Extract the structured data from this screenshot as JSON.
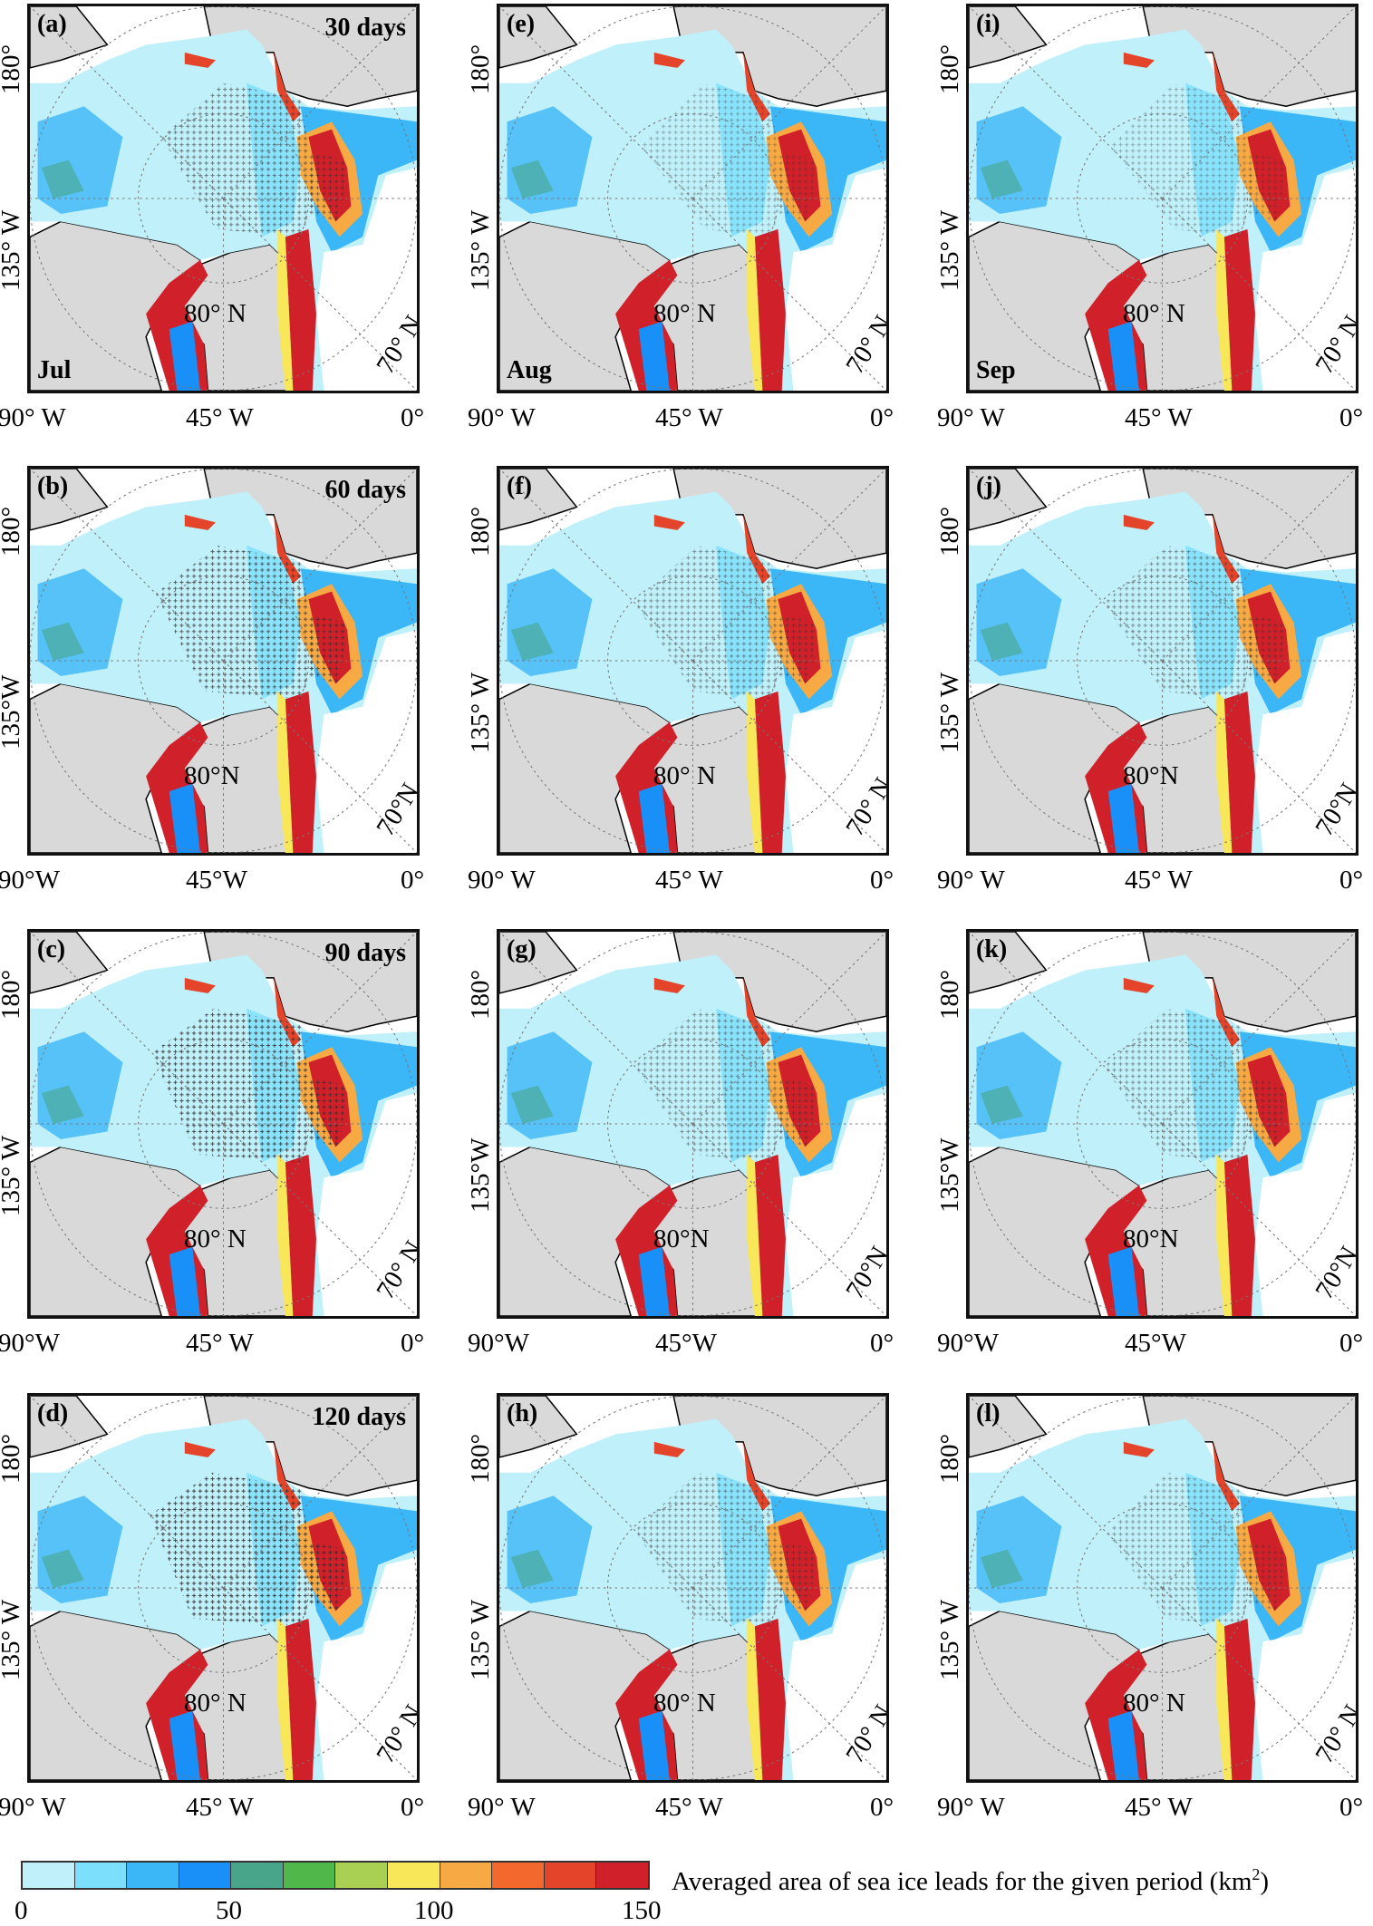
{
  "colorbar": {
    "label": "Averaged area of sea ice leads for the given period (km",
    "label_sup": "2",
    "label_end": ")",
    "ticks": [
      "0",
      "50",
      "100",
      "150"
    ],
    "range": [
      0,
      150
    ],
    "colors": [
      "#c0f1fb",
      "#7ce0fc",
      "#3bb6f7",
      "#1890f8",
      "#48a58a",
      "#50b74a",
      "#a9d052",
      "#f8e759",
      "#f7aa43",
      "#f3682c",
      "#e44429",
      "#d02029"
    ]
  },
  "colors": {
    "land": "#d9d9d9",
    "no_data": "#ffffff",
    "stipple": "#333333"
  },
  "panels": [
    {
      "id": "a",
      "label": "(a)",
      "period": "30 days",
      "month": "Jul",
      "lat180": "180°",
      "lon135": "135° W",
      "lon90": "90° W",
      "lon45": "45° W",
      "lon0": "0°",
      "lat80": "80° N",
      "lat70": "70° N",
      "stipple": 0.6
    },
    {
      "id": "e",
      "label": "(e)",
      "period": "",
      "month": "Aug",
      "lat180": "180°",
      "lon135": "135° W",
      "lon90": "90° W",
      "lon45": "45° W",
      "lon0": "0°",
      "lat80": "80° N",
      "lat70": "70° N",
      "stipple": 0.35
    },
    {
      "id": "i",
      "label": "(i)",
      "period": "",
      "month": "Sep",
      "lat180": "180°",
      "lon135": "135° W",
      "lon90": "90° W",
      "lon45": "45° W",
      "lon0": "0°",
      "lat80": "80° N",
      "lat70": "70° N",
      "stipple": 0.35
    },
    {
      "id": "b",
      "label": "(b)",
      "period": "60 days",
      "month": "",
      "lat180": "180°",
      "lon135": "135°W",
      "lon90": "90°W",
      "lon45": "45°W",
      "lon0": "0°",
      "lat80": "80°N",
      "lat70": "70°N",
      "stipple": 0.75
    },
    {
      "id": "f",
      "label": "(f)",
      "period": "",
      "month": "",
      "lat180": "180°",
      "lon135": "135° W",
      "lon90": "90° W",
      "lon45": "45° W",
      "lon0": "0°",
      "lat80": "80° N",
      "lat70": "70° N",
      "stipple": 0.5
    },
    {
      "id": "j",
      "label": "(j)",
      "period": "",
      "month": "",
      "lat180": "180°",
      "lon135": "135° W",
      "lon90": "90° W",
      "lon45": "45° W",
      "lon0": "0°",
      "lat80": "80°N",
      "lat70": "70°N",
      "stipple": 0.5
    },
    {
      "id": "c",
      "label": "(c)",
      "period": "90 days",
      "month": "",
      "lat180": "180°",
      "lon135": "135° W",
      "lon90": "90°W",
      "lon45": "45° W",
      "lon0": "0°",
      "lat80": "80° N",
      "lat70": "70° N",
      "stipple": 0.85
    },
    {
      "id": "g",
      "label": "(g)",
      "period": "",
      "month": "",
      "lat180": "180°",
      "lon135": "135°W",
      "lon90": "90°W",
      "lon45": "45°W",
      "lon0": "0°",
      "lat80": "80°N",
      "lat70": "70°N",
      "stipple": 0.5
    },
    {
      "id": "k",
      "label": "(k)",
      "period": "",
      "month": "",
      "lat180": "180°",
      "lon135": "135°W",
      "lon90": "90°W",
      "lon45": "45°W",
      "lon0": "0°",
      "lat80": "80°N",
      "lat70": "70°N",
      "stipple": 0.5
    },
    {
      "id": "d",
      "label": "(d)",
      "period": "120 days",
      "month": "",
      "lat180": "180°",
      "lon135": "135° W",
      "lon90": "90° W",
      "lon45": "45° W",
      "lon0": "0°",
      "lat80": "80° N",
      "lat70": "70° N",
      "stipple": 0.9
    },
    {
      "id": "h",
      "label": "(h)",
      "period": "",
      "month": "",
      "lat180": "180°",
      "lon135": "135° W",
      "lon90": "90° W",
      "lon45": "45° W",
      "lon0": "0°",
      "lat80": "80° N",
      "lat70": "70° N",
      "stipple": 0.5
    },
    {
      "id": "l",
      "label": "(l)",
      "period": "",
      "month": "",
      "lat180": "180°",
      "lon135": "135° W",
      "lon90": "90° W",
      "lon45": "45° W",
      "lon0": "0°",
      "lat80": "80° N",
      "lat70": "70° N",
      "stipple": 0.45
    }
  ]
}
